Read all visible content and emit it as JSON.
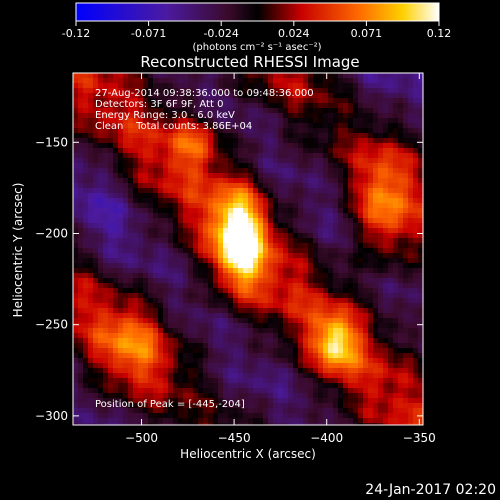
{
  "colorbar": {
    "ticks": [
      "-0.12",
      "-0.071",
      "-0.024",
      "0.024",
      "0.071",
      "0.12"
    ],
    "unit_label": "(photons cm⁻² s⁻¹ asec⁻²)"
  },
  "chart_data": {
    "type": "heatmap",
    "title": "Reconstructed RHESSI Image",
    "xlabel": "Heliocentric X (arcsec)",
    "ylabel": "Heliocentric Y (arcsec)",
    "xlim": [
      -537,
      -348
    ],
    "ylim": [
      -305,
      -112
    ],
    "x_ticks": [
      -500,
      -450,
      -400,
      -350
    ],
    "y_ticks": [
      -150,
      -200,
      -250,
      -300
    ],
    "x_tick_labels": [
      "−500",
      "−450",
      "−400",
      "−350"
    ],
    "y_tick_labels": [
      "−150",
      "−200",
      "−250",
      "−300"
    ],
    "color_range": [
      -0.12,
      0.12
    ],
    "colormap": "blue-purple-red-yellow-white",
    "info_lines": [
      "27-Aug-2014 09:38:36.000 to 09:48:36.000",
      "Detectors: 3F 6F 9F, Att 0",
      "Energy Range: 3.0 - 6.0 keV",
      "Clean    Total counts: 3.86E+04"
    ],
    "peak_label": "Position of Peak = [-445,-204]",
    "peak_position": [
      -445,
      -204
    ],
    "peak_value": 0.12,
    "sources": [
      {
        "x": -447,
        "y": -203,
        "sx": 10,
        "sy": 20,
        "amp": 0.12
      },
      {
        "x": -395,
        "y": -260,
        "sx": 8,
        "sy": 11,
        "amp": 0.085
      },
      {
        "x": -372,
        "y": -190,
        "sx": 9,
        "sy": 20,
        "amp": 0.07
      },
      {
        "x": -470,
        "y": -150,
        "sx": 10,
        "sy": 10,
        "amp": 0.055
      },
      {
        "x": -505,
        "y": -260,
        "sx": 13,
        "sy": 15,
        "amp": 0.045
      }
    ]
  },
  "timestamp": "24-Jan-2017 02:20"
}
